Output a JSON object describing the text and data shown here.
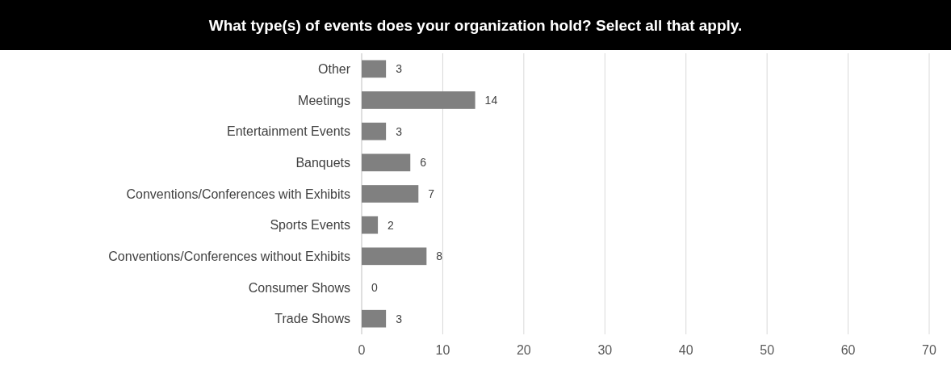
{
  "chart_data": {
    "type": "bar",
    "orientation": "horizontal",
    "title": "What type(s) of events does your organization hold? Select all that apply.",
    "categories": [
      "Other",
      "Meetings",
      "Entertainment Events",
      "Banquets",
      "Conventions/Conferences with Exhibits",
      "Sports Events",
      "Conventions/Conferences without Exhibits",
      "Consumer Shows",
      "Trade Shows"
    ],
    "values": [
      3,
      14,
      3,
      6,
      7,
      2,
      8,
      0,
      3
    ],
    "color": "#808080",
    "xlim": [
      0,
      70
    ],
    "xticks": [
      0,
      10,
      20,
      30,
      40,
      50,
      60,
      70
    ],
    "grid": "x",
    "data_labels": true
  }
}
